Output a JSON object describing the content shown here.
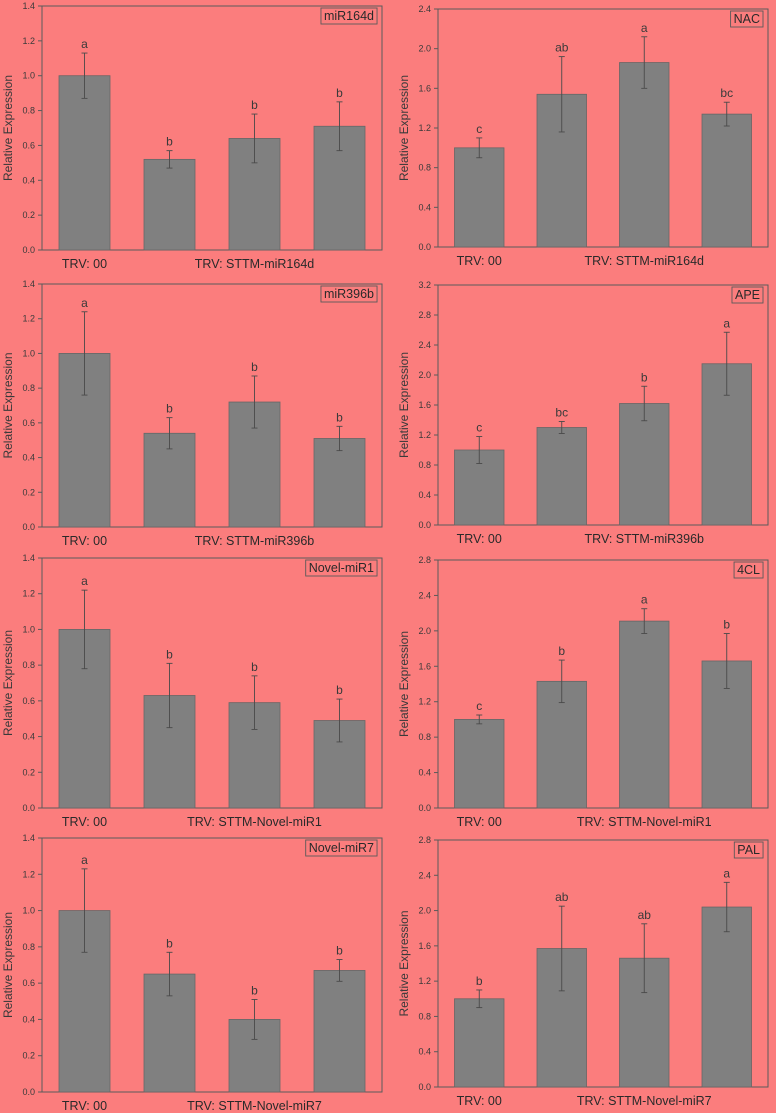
{
  "colors": {
    "background": "#fb7d7d",
    "bar": "#808080",
    "axis": "#5a5a5a",
    "error_bar": "#4a4a4a"
  },
  "chart_data": [
    {
      "type": "bar",
      "title": "miR164d",
      "ylabel": "Relative Expression",
      "ylim": [
        0,
        1.4
      ],
      "yticks": [
        "0.0",
        "0.2",
        "0.4",
        "0.6",
        "0.8",
        "1.0",
        "1.2",
        "1.4"
      ],
      "values": [
        1.0,
        0.52,
        0.64,
        0.71
      ],
      "errors": [
        0.13,
        0.05,
        0.14,
        0.14
      ],
      "letters": [
        "a",
        "b",
        "b",
        "b"
      ],
      "group_labels": [
        "TRV: 00",
        "TRV: STTM-miR164d"
      ]
    },
    {
      "type": "bar",
      "title": "NAC",
      "ylabel": "Relative Expression",
      "ylim": [
        0,
        2.4
      ],
      "yticks": [
        "0.0",
        "0.4",
        "0.8",
        "1.2",
        "1.6",
        "2.0",
        "2.4"
      ],
      "values": [
        1.0,
        1.54,
        1.86,
        1.34
      ],
      "errors": [
        0.1,
        0.38,
        0.26,
        0.12
      ],
      "letters": [
        "c",
        "ab",
        "a",
        "bc"
      ],
      "group_labels": [
        "TRV: 00",
        "TRV: STTM-miR164d"
      ]
    },
    {
      "type": "bar",
      "title": "miR396b",
      "ylabel": "Relative Expression",
      "ylim": [
        0,
        1.4
      ],
      "yticks": [
        "0.0",
        "0.2",
        "0.4",
        "0.6",
        "0.8",
        "1.0",
        "1.2",
        "1.4"
      ],
      "values": [
        1.0,
        0.54,
        0.72,
        0.51
      ],
      "errors": [
        0.24,
        0.09,
        0.15,
        0.07
      ],
      "letters": [
        "a",
        "b",
        "b",
        "b"
      ],
      "group_labels": [
        "TRV: 00",
        "TRV: STTM-miR396b"
      ]
    },
    {
      "type": "bar",
      "title": "APE",
      "ylabel": "Relative Expression",
      "ylim": [
        0,
        3.2
      ],
      "yticks": [
        "0.0",
        "0.4",
        "0.8",
        "1.2",
        "1.6",
        "2.0",
        "2.4",
        "2.8",
        "3.2"
      ],
      "values": [
        1.0,
        1.3,
        1.62,
        2.15
      ],
      "errors": [
        0.18,
        0.08,
        0.23,
        0.42
      ],
      "letters": [
        "c",
        "bc",
        "b",
        "a"
      ],
      "group_labels": [
        "TRV: 00",
        "TRV: STTM-miR396b"
      ]
    },
    {
      "type": "bar",
      "title": "Novel-miR1",
      "ylabel": "Relative Expression",
      "ylim": [
        0,
        1.4
      ],
      "yticks": [
        "0.0",
        "0.2",
        "0.4",
        "0.6",
        "0.8",
        "1.0",
        "1.2",
        "1.4"
      ],
      "values": [
        1.0,
        0.63,
        0.59,
        0.49
      ],
      "errors": [
        0.22,
        0.18,
        0.15,
        0.12
      ],
      "letters": [
        "a",
        "b",
        "b",
        "b"
      ],
      "group_labels": [
        "TRV: 00",
        "TRV: STTM-Novel-miR1"
      ]
    },
    {
      "type": "bar",
      "title": "4CL",
      "ylabel": "Relative Expression",
      "ylim": [
        0,
        2.8
      ],
      "yticks": [
        "0.0",
        "0.4",
        "0.8",
        "1.2",
        "1.6",
        "2.0",
        "2.4",
        "2.8"
      ],
      "values": [
        1.0,
        1.43,
        2.11,
        1.66
      ],
      "errors": [
        0.05,
        0.24,
        0.14,
        0.31
      ],
      "letters": [
        "c",
        "b",
        "a",
        "b"
      ],
      "group_labels": [
        "TRV: 00",
        "TRV: STTM-Novel-miR1"
      ]
    },
    {
      "type": "bar",
      "title": "Novel-miR7",
      "ylabel": "Relative Expression",
      "ylim": [
        0,
        1.4
      ],
      "yticks": [
        "0.0",
        "0.2",
        "0.4",
        "0.6",
        "0.8",
        "1.0",
        "1.2",
        "1.4"
      ],
      "values": [
        1.0,
        0.65,
        0.4,
        0.67
      ],
      "errors": [
        0.23,
        0.12,
        0.11,
        0.06
      ],
      "letters": [
        "a",
        "b",
        "b",
        "b"
      ],
      "group_labels": [
        "TRV: 00",
        "TRV: STTM-Novel-miR7"
      ]
    },
    {
      "type": "bar",
      "title": "PAL",
      "ylabel": "Relative Expression",
      "ylim": [
        0,
        2.8
      ],
      "yticks": [
        "0.0",
        "0.4",
        "0.8",
        "1.2",
        "1.6",
        "2.0",
        "2.4",
        "2.8"
      ],
      "values": [
        1.0,
        1.57,
        1.46,
        2.04
      ],
      "errors": [
        0.1,
        0.48,
        0.39,
        0.28
      ],
      "letters": [
        "b",
        "ab",
        "ab",
        "a"
      ],
      "group_labels": [
        "TRV: 00",
        "TRV: STTM-Novel-miR7"
      ]
    }
  ]
}
